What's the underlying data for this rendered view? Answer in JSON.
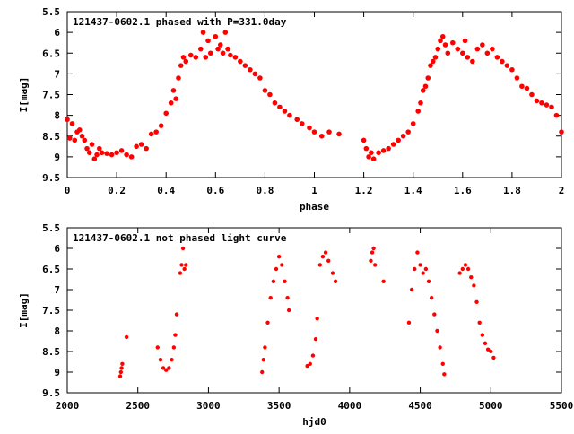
{
  "chart_data": [
    {
      "type": "scatter",
      "title": "121437-0602.1 phased with P=331.0day",
      "xlabel": "phase",
      "ylabel": "I[mag]",
      "xlim": [
        0,
        2
      ],
      "ylim": [
        9.5,
        5.5
      ],
      "y_inverted": true,
      "grid": false,
      "marker_color": "#ff0000",
      "marker_shape": "filled-circle",
      "x_ticks": [
        "0",
        "0.2",
        "0.4",
        "0.6",
        "0.8",
        "1",
        "1.2",
        "1.4",
        "1.6",
        "1.8",
        "2"
      ],
      "y_ticks": [
        "5.5",
        "6",
        "6.5",
        "7",
        "7.5",
        "8",
        "8.5",
        "9",
        "9.5"
      ],
      "points": [
        [
          0.0,
          8.1
        ],
        [
          0.01,
          8.55
        ],
        [
          0.02,
          8.2
        ],
        [
          0.03,
          8.6
        ],
        [
          0.04,
          8.4
        ],
        [
          0.05,
          8.35
        ],
        [
          0.06,
          8.5
        ],
        [
          0.07,
          8.6
        ],
        [
          0.08,
          8.8
        ],
        [
          0.09,
          8.9
        ],
        [
          0.1,
          8.7
        ],
        [
          0.11,
          9.05
        ],
        [
          0.12,
          8.95
        ],
        [
          0.13,
          8.8
        ],
        [
          0.14,
          8.9
        ],
        [
          0.16,
          8.92
        ],
        [
          0.18,
          8.95
        ],
        [
          0.2,
          8.9
        ],
        [
          0.22,
          8.85
        ],
        [
          0.24,
          8.95
        ],
        [
          0.26,
          9.0
        ],
        [
          0.28,
          8.75
        ],
        [
          0.3,
          8.7
        ],
        [
          0.32,
          8.8
        ],
        [
          0.34,
          8.45
        ],
        [
          0.36,
          8.4
        ],
        [
          0.38,
          8.25
        ],
        [
          0.4,
          7.95
        ],
        [
          0.42,
          7.7
        ],
        [
          0.43,
          7.4
        ],
        [
          0.44,
          7.6
        ],
        [
          0.45,
          7.1
        ],
        [
          0.46,
          6.8
        ],
        [
          0.47,
          6.6
        ],
        [
          0.48,
          6.7
        ],
        [
          0.5,
          6.55
        ],
        [
          0.52,
          6.6
        ],
        [
          0.54,
          6.4
        ],
        [
          0.55,
          6.0
        ],
        [
          0.56,
          6.6
        ],
        [
          0.57,
          6.2
        ],
        [
          0.58,
          6.5
        ],
        [
          0.6,
          6.1
        ],
        [
          0.61,
          6.4
        ],
        [
          0.62,
          6.3
        ],
        [
          0.63,
          6.5
        ],
        [
          0.64,
          6.0
        ],
        [
          0.65,
          6.4
        ],
        [
          0.66,
          6.55
        ],
        [
          0.68,
          6.6
        ],
        [
          0.7,
          6.7
        ],
        [
          0.72,
          6.8
        ],
        [
          0.74,
          6.9
        ],
        [
          0.76,
          7.0
        ],
        [
          0.78,
          7.1
        ],
        [
          0.8,
          7.4
        ],
        [
          0.82,
          7.5
        ],
        [
          0.84,
          7.7
        ],
        [
          0.86,
          7.8
        ],
        [
          0.88,
          7.9
        ],
        [
          0.9,
          8.0
        ],
        [
          0.93,
          8.1
        ],
        [
          0.95,
          8.2
        ],
        [
          0.98,
          8.3
        ],
        [
          1.0,
          8.4
        ],
        [
          1.03,
          8.5
        ],
        [
          1.06,
          8.4
        ],
        [
          1.1,
          8.45
        ],
        [
          1.2,
          8.6
        ],
        [
          1.21,
          8.8
        ],
        [
          1.22,
          9.0
        ],
        [
          1.23,
          8.9
        ],
        [
          1.24,
          9.05
        ],
        [
          1.26,
          8.9
        ],
        [
          1.28,
          8.85
        ],
        [
          1.3,
          8.8
        ],
        [
          1.32,
          8.7
        ],
        [
          1.34,
          8.6
        ],
        [
          1.36,
          8.5
        ],
        [
          1.38,
          8.4
        ],
        [
          1.4,
          8.2
        ],
        [
          1.42,
          7.9
        ],
        [
          1.43,
          7.7
        ],
        [
          1.44,
          7.4
        ],
        [
          1.45,
          7.3
        ],
        [
          1.46,
          7.1
        ],
        [
          1.47,
          6.8
        ],
        [
          1.48,
          6.7
        ],
        [
          1.49,
          6.6
        ],
        [
          1.5,
          6.4
        ],
        [
          1.51,
          6.2
        ],
        [
          1.52,
          6.1
        ],
        [
          1.53,
          6.3
        ],
        [
          1.54,
          6.5
        ],
        [
          1.56,
          6.25
        ],
        [
          1.58,
          6.4
        ],
        [
          1.6,
          6.5
        ],
        [
          1.61,
          6.2
        ],
        [
          1.62,
          6.6
        ],
        [
          1.64,
          6.7
        ],
        [
          1.66,
          6.4
        ],
        [
          1.68,
          6.3
        ],
        [
          1.7,
          6.5
        ],
        [
          1.72,
          6.4
        ],
        [
          1.74,
          6.6
        ],
        [
          1.76,
          6.7
        ],
        [
          1.78,
          6.8
        ],
        [
          1.8,
          6.9
        ],
        [
          1.82,
          7.1
        ],
        [
          1.84,
          7.3
        ],
        [
          1.86,
          7.35
        ],
        [
          1.88,
          7.5
        ],
        [
          1.9,
          7.65
        ],
        [
          1.92,
          7.7
        ],
        [
          1.94,
          7.75
        ],
        [
          1.96,
          7.8
        ],
        [
          1.98,
          8.0
        ],
        [
          2.0,
          8.4
        ]
      ]
    },
    {
      "type": "scatter",
      "title": "121437-0602.1 not phased light curve",
      "xlabel": "hjd0",
      "ylabel": "I[mag]",
      "xlim": [
        2000,
        5500
      ],
      "ylim": [
        9.5,
        5.5
      ],
      "y_inverted": true,
      "grid": false,
      "marker_color": "#ff0000",
      "marker_shape": "filled-circle",
      "x_ticks": [
        "2000",
        "2500",
        "3000",
        "3500",
        "4000",
        "4500",
        "5000",
        "5500"
      ],
      "y_ticks": [
        "5.5",
        "6",
        "6.5",
        "7",
        "7.5",
        "8",
        "8.5",
        "9",
        "9.5"
      ],
      "points": [
        [
          2375,
          9.1
        ],
        [
          2380,
          9.0
        ],
        [
          2385,
          8.9
        ],
        [
          2390,
          8.8
        ],
        [
          2420,
          8.15
        ],
        [
          2640,
          8.4
        ],
        [
          2660,
          8.7
        ],
        [
          2680,
          8.9
        ],
        [
          2700,
          8.95
        ],
        [
          2720,
          8.9
        ],
        [
          2740,
          8.7
        ],
        [
          2755,
          8.4
        ],
        [
          2765,
          8.1
        ],
        [
          2775,
          7.6
        ],
        [
          2800,
          6.6
        ],
        [
          2810,
          6.4
        ],
        [
          2820,
          6.0
        ],
        [
          2830,
          6.5
        ],
        [
          2840,
          6.4
        ],
        [
          3380,
          9.0
        ],
        [
          3390,
          8.7
        ],
        [
          3400,
          8.4
        ],
        [
          3420,
          7.8
        ],
        [
          3440,
          7.2
        ],
        [
          3460,
          6.8
        ],
        [
          3480,
          6.5
        ],
        [
          3500,
          6.2
        ],
        [
          3520,
          6.4
        ],
        [
          3540,
          6.8
        ],
        [
          3560,
          7.2
        ],
        [
          3570,
          7.5
        ],
        [
          3700,
          8.85
        ],
        [
          3720,
          8.8
        ],
        [
          3740,
          8.6
        ],
        [
          3760,
          8.2
        ],
        [
          3770,
          7.7
        ],
        [
          3790,
          6.4
        ],
        [
          3810,
          6.2
        ],
        [
          3830,
          6.1
        ],
        [
          3850,
          6.3
        ],
        [
          3880,
          6.6
        ],
        [
          3900,
          6.8
        ],
        [
          4150,
          6.3
        ],
        [
          4160,
          6.1
        ],
        [
          4170,
          6.0
        ],
        [
          4180,
          6.4
        ],
        [
          4240,
          6.8
        ],
        [
          4420,
          7.8
        ],
        [
          4440,
          7.0
        ],
        [
          4460,
          6.5
        ],
        [
          4480,
          6.1
        ],
        [
          4500,
          6.4
        ],
        [
          4520,
          6.6
        ],
        [
          4540,
          6.5
        ],
        [
          4560,
          6.8
        ],
        [
          4580,
          7.2
        ],
        [
          4600,
          7.6
        ],
        [
          4620,
          8.0
        ],
        [
          4640,
          8.4
        ],
        [
          4660,
          8.8
        ],
        [
          4670,
          9.05
        ],
        [
          4780,
          6.6
        ],
        [
          4800,
          6.5
        ],
        [
          4820,
          6.4
        ],
        [
          4840,
          6.5
        ],
        [
          4860,
          6.7
        ],
        [
          4880,
          6.9
        ],
        [
          4900,
          7.3
        ],
        [
          4920,
          7.8
        ],
        [
          4940,
          8.1
        ],
        [
          4960,
          8.3
        ],
        [
          4980,
          8.45
        ],
        [
          5000,
          8.5
        ],
        [
          5020,
          8.65
        ]
      ]
    }
  ]
}
